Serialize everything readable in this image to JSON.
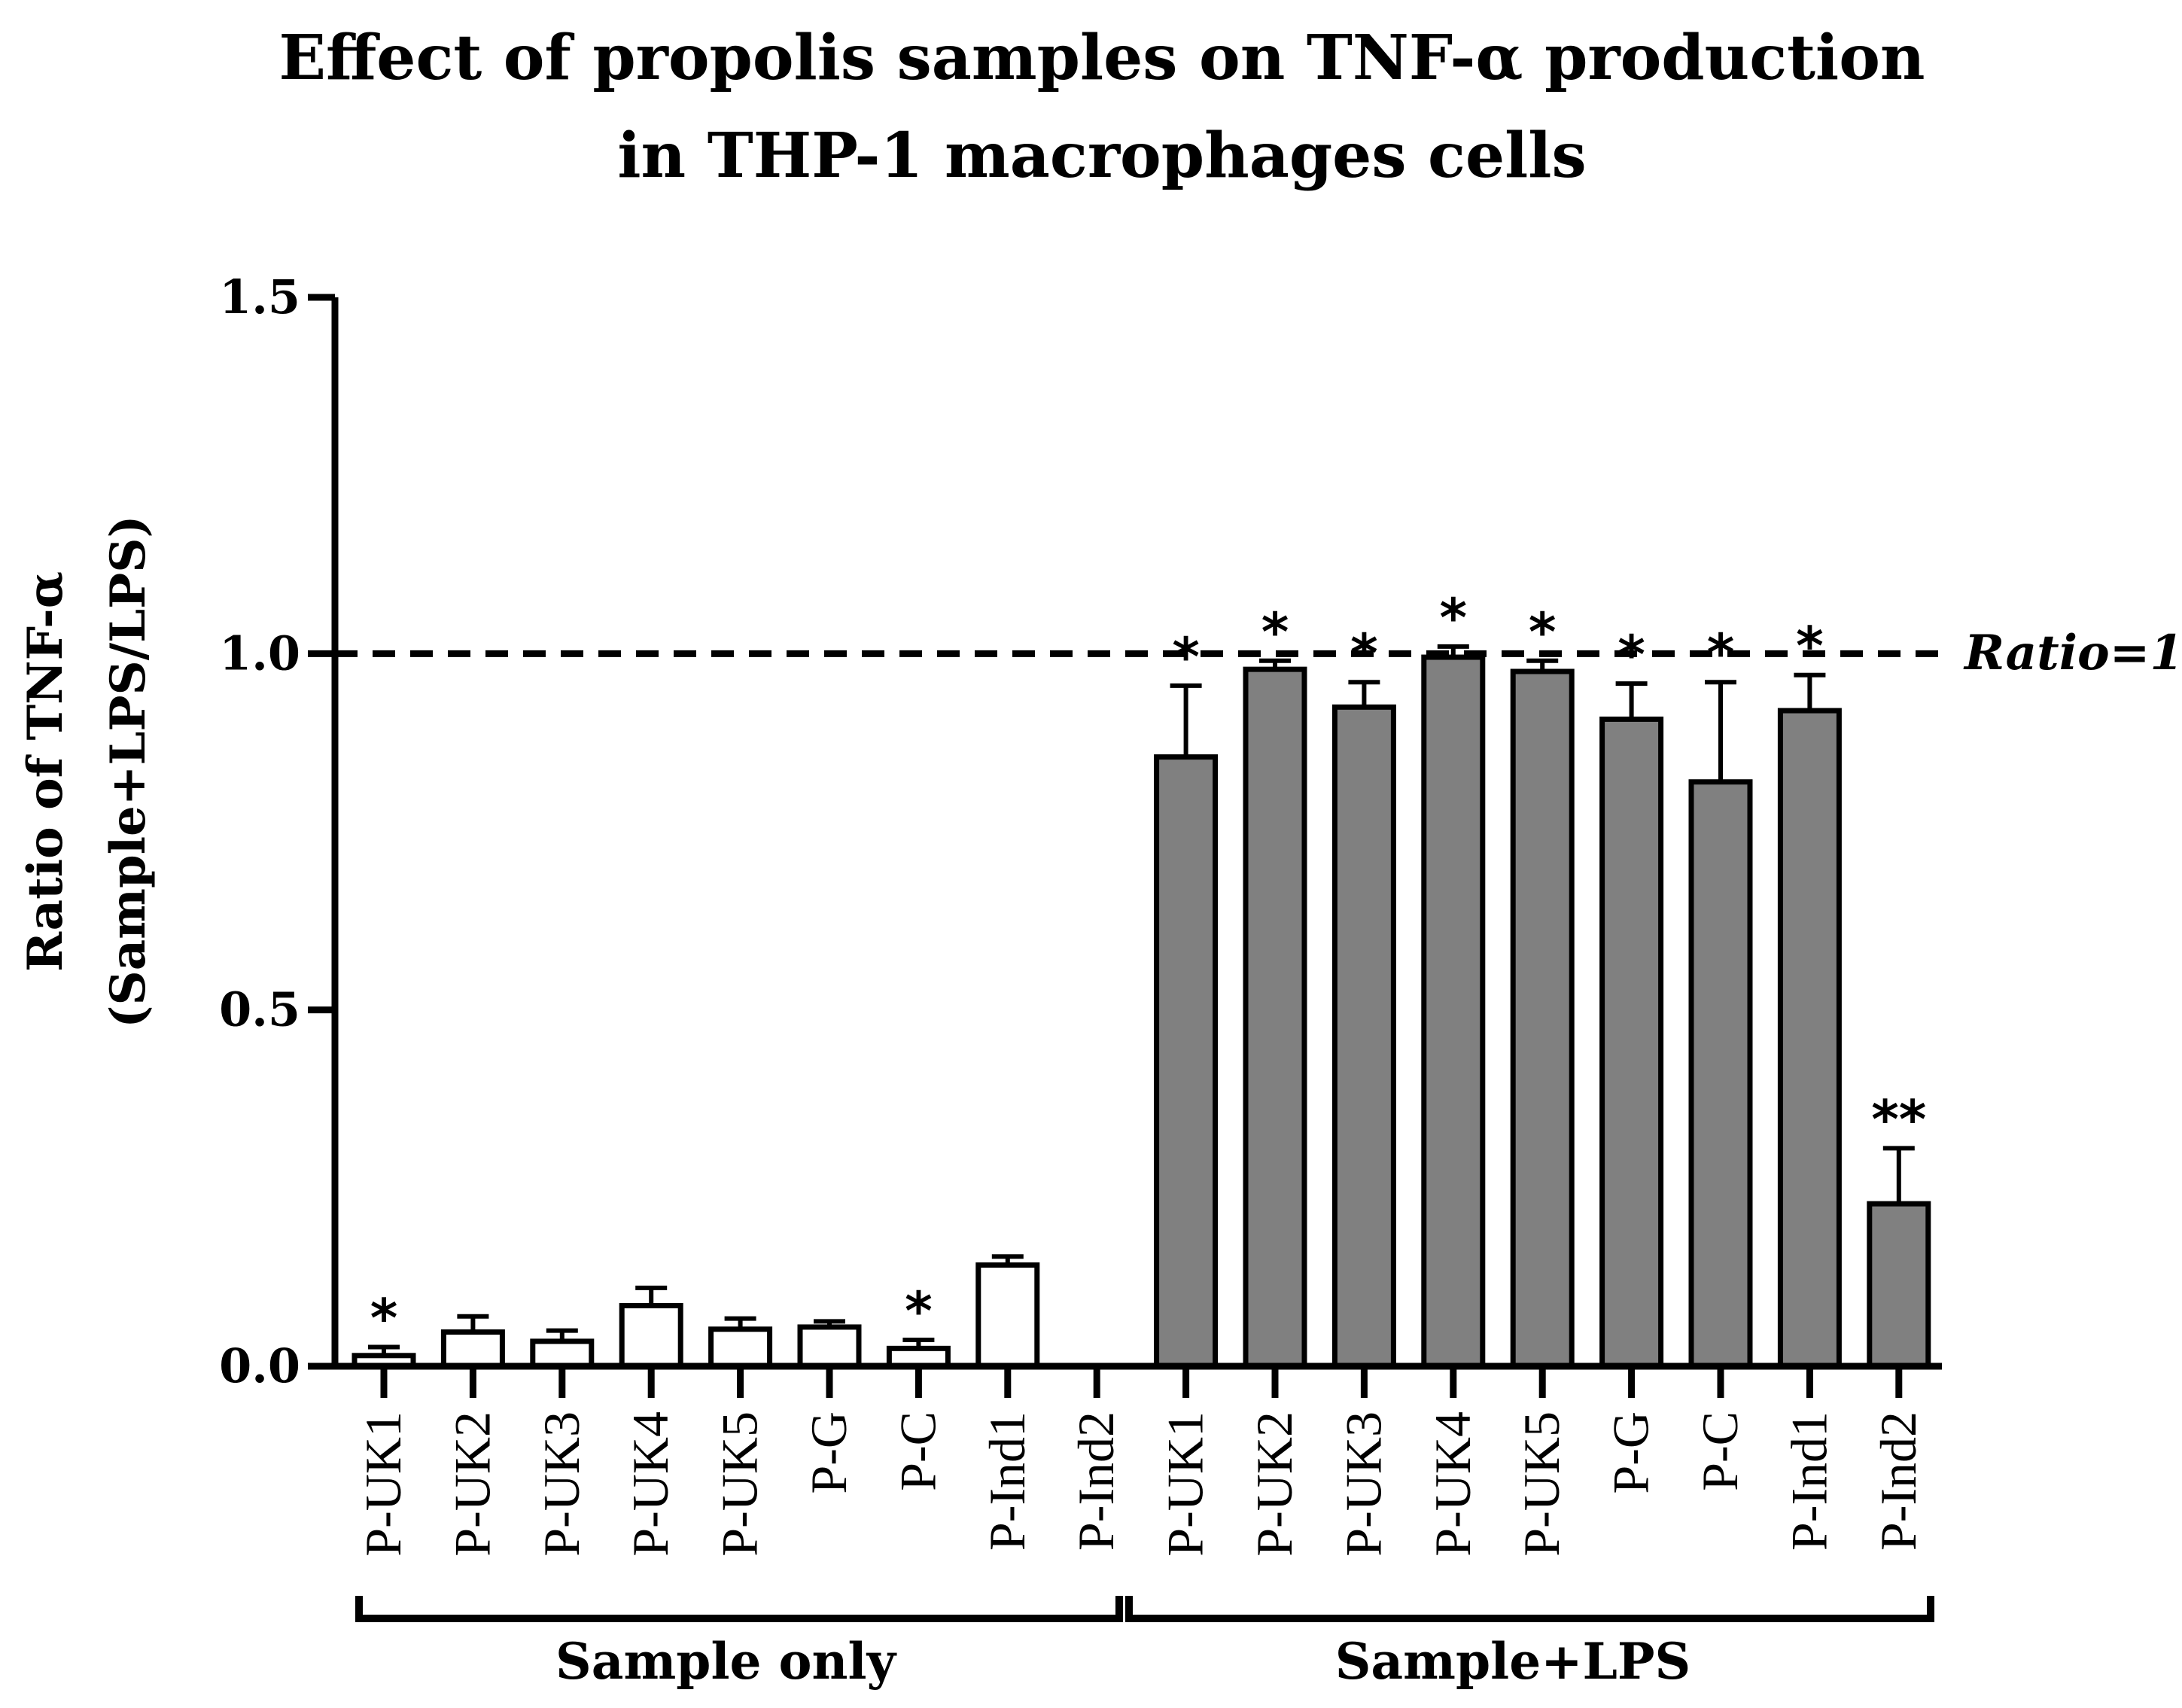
{
  "chart_data": {
    "type": "bar",
    "title_line1": "Effect of propolis samples on TNF-α production",
    "title_line2": "in THP-1 macrophages cells",
    "ylabel_line1": "Ratio of TNF-α",
    "ylabel_line2": "(Sample+LPS/LPS)",
    "ylim": [
      0,
      1.5
    ],
    "yticks": [
      "0.0",
      "0.5",
      "1.0",
      "1.5"
    ],
    "ytick_values": [
      0,
      0.5,
      1.0,
      1.5
    ],
    "reference_line": {
      "value": 1.0,
      "label": "Ratio=1",
      "style": "dashed"
    },
    "categories": [
      "P-UK1",
      "P-UK2",
      "P-UK3",
      "P-UK4",
      "P-UK5",
      "P-G",
      "P-C",
      "P-Ind1",
      "P-Ind2"
    ],
    "series": [
      {
        "name": "Sample only",
        "color": "#ffffff",
        "values": [
          0.015,
          0.048,
          0.035,
          0.085,
          0.052,
          0.055,
          0.025,
          0.142,
          0.0
        ],
        "errors": [
          0.012,
          0.022,
          0.015,
          0.025,
          0.015,
          0.008,
          0.012,
          0.012,
          0.0
        ],
        "significance": [
          "*",
          "",
          "",
          "",
          "",
          "",
          "*",
          "",
          ""
        ]
      },
      {
        "name": "Sample+LPS",
        "color": "#808080",
        "values": [
          0.855,
          0.978,
          0.925,
          0.995,
          0.975,
          0.908,
          0.82,
          0.92,
          0.228
        ],
        "errors": [
          0.1,
          0.012,
          0.035,
          0.015,
          0.015,
          0.05,
          0.14,
          0.05,
          0.078
        ],
        "significance": [
          "*",
          "*",
          "*",
          "*",
          "*",
          "*",
          "*",
          "*",
          "**"
        ]
      }
    ],
    "group_labels": [
      "Sample only",
      "Sample+LPS"
    ]
  }
}
